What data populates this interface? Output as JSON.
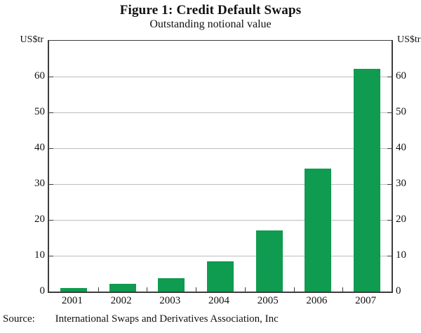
{
  "header": {
    "title": "Figure 1: Credit Default Swaps",
    "subtitle": "Outstanding notional value"
  },
  "y_axis": {
    "unit_label_left": "US$tr",
    "unit_label_right": "US$tr"
  },
  "footer": {
    "source_label": "Source:",
    "source_text": "International Swaps and Derivatives Association, Inc"
  },
  "colors": {
    "bar": "#0f9b50",
    "gridline": "#bdbdbd",
    "axis": "#3d3d3d",
    "text": "#111111"
  },
  "chart_data": {
    "type": "bar",
    "title": "Figure 1: Credit Default Swaps",
    "subtitle": "Outstanding notional value",
    "categories": [
      "2001",
      "2002",
      "2003",
      "2004",
      "2005",
      "2006",
      "2007"
    ],
    "values": [
      0.9,
      2.2,
      3.8,
      8.4,
      17.1,
      34.4,
      62.2
    ],
    "xlabel": "",
    "ylabel": "US$tr",
    "ylim": [
      0,
      70
    ],
    "yticks": [
      0,
      10,
      20,
      30,
      40,
      50,
      60
    ],
    "grid": true,
    "legend": "none",
    "bar_color": "#0f9b50"
  }
}
